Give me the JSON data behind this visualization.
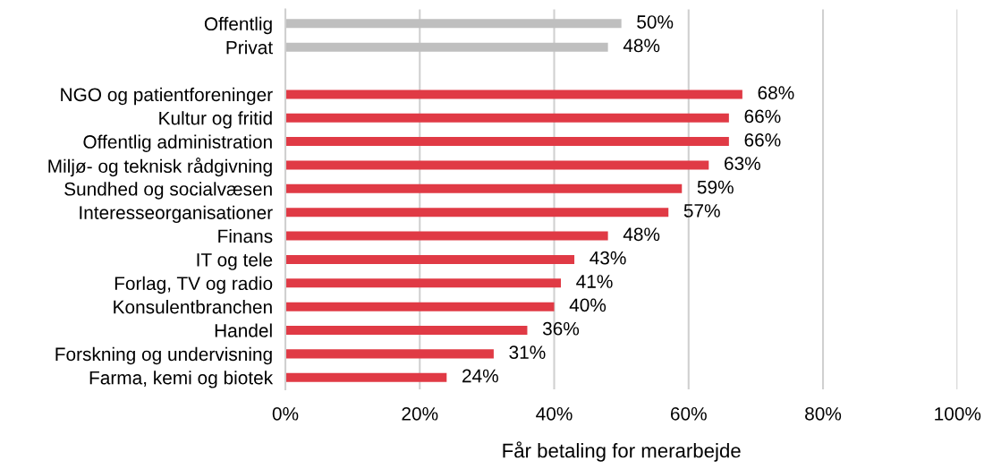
{
  "chart_data": {
    "type": "bar",
    "orientation": "horizontal",
    "xlabel": "Får betaling for merarbejde",
    "categories": [
      "Offentlig",
      "Privat",
      null,
      "NGO og patientforeninger",
      "Kultur og fritid",
      "Offentlig administration",
      "Miljø- og teknisk rådgivning",
      "Sundhed og socialvæsen",
      "Interesseorganisationer",
      "Finans",
      "IT og tele",
      "Forlag, TV og radio",
      "Konsulentbranchen",
      "Handel",
      "Forskning og undervisning",
      "Farma, kemi og biotek"
    ],
    "values": [
      50,
      48,
      null,
      68,
      66,
      66,
      63,
      59,
      57,
      48,
      43,
      41,
      40,
      36,
      31,
      24
    ],
    "value_labels": [
      "50%",
      "48%",
      null,
      "68%",
      "66%",
      "66%",
      "63%",
      "59%",
      "57%",
      "48%",
      "43%",
      "41%",
      "40%",
      "36%",
      "31%",
      "24%"
    ],
    "colors": [
      "#bfbfbf",
      "#bfbfbf",
      null,
      "#e03a45",
      "#e03a45",
      "#e03a45",
      "#e03a45",
      "#e03a45",
      "#e03a45",
      "#e03a45",
      "#e03a45",
      "#e03a45",
      "#e03a45",
      "#e03a45",
      "#e03a45",
      "#e03a45"
    ],
    "xlim": [
      0,
      100
    ],
    "xticks": [
      {
        "value": 0,
        "label": "0%"
      },
      {
        "value": 20,
        "label": "20%"
      },
      {
        "value": 40,
        "label": "40%"
      },
      {
        "value": 60,
        "label": "60%"
      },
      {
        "value": 80,
        "label": "80%"
      },
      {
        "value": 100,
        "label": "100%"
      }
    ],
    "grid": "x"
  }
}
